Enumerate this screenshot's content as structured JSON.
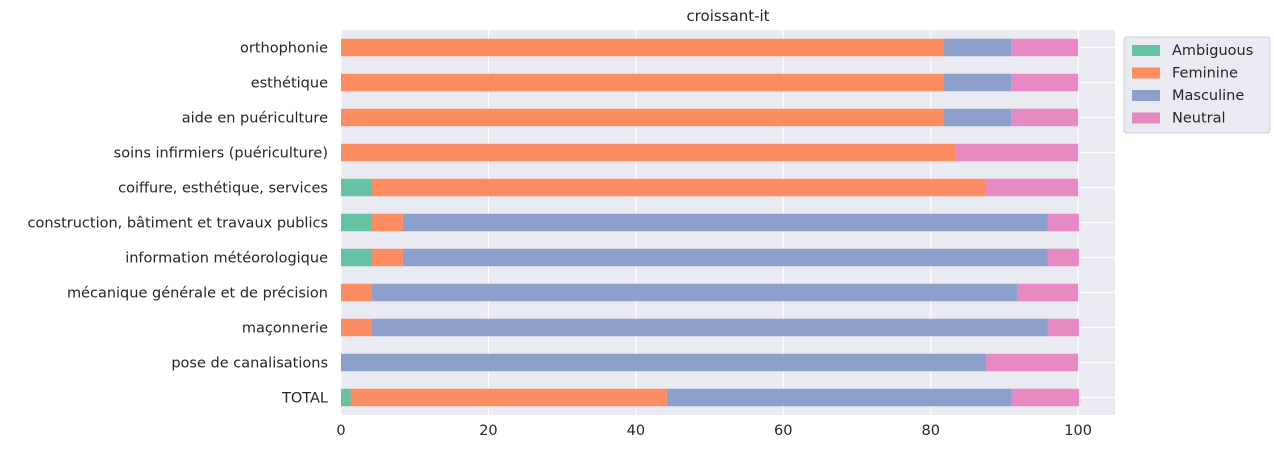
{
  "chart_data": {
    "type": "bar",
    "orientation": "horizontal",
    "stacked": true,
    "title": "croissant-it",
    "xlabel": "",
    "ylabel": "",
    "xlim": [
      0,
      105
    ],
    "xticks": [
      0,
      20,
      40,
      60,
      80,
      100
    ],
    "grid": true,
    "legend_position": "outside upper-right",
    "categories": [
      "orthophonie",
      "esthétique",
      "aide en puériculture",
      "soins infirmiers (puériculture)",
      "coiffure, esthétique, services",
      "construction, bâtiment et travaux publics",
      "information météorologique",
      "mécanique générale et de précision",
      "maçonnerie",
      "pose de canalisations",
      "TOTAL"
    ],
    "series": [
      {
        "name": "Ambiguous",
        "color": "#66c2a5",
        "values": [
          0,
          0,
          0,
          0,
          4.2,
          4.2,
          4.2,
          0,
          0,
          0,
          1.3
        ]
      },
      {
        "name": "Feminine",
        "color": "#fc8d62",
        "values": [
          81.8,
          81.8,
          81.8,
          83.3,
          83.3,
          4.2,
          4.2,
          4.2,
          4.2,
          0,
          42.9
        ]
      },
      {
        "name": "Masculine",
        "color": "#8da0cb",
        "values": [
          9.1,
          9.1,
          9.1,
          0,
          0,
          87.5,
          87.5,
          87.5,
          91.7,
          87.5,
          46.8
        ]
      },
      {
        "name": "Neutral",
        "color": "#e78ac3",
        "values": [
          9.1,
          9.1,
          9.1,
          16.7,
          12.5,
          4.2,
          4.2,
          8.3,
          4.2,
          12.5,
          9.1
        ]
      }
    ]
  }
}
